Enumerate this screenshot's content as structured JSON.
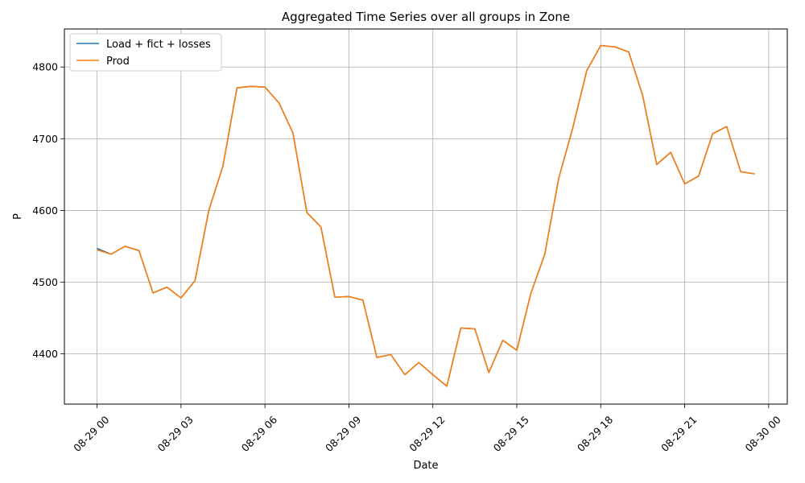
{
  "chart_data": {
    "type": "line",
    "title": "Aggregated Time Series over all groups in Zone",
    "xlabel": "Date",
    "ylabel": "P",
    "x_tick_labels": [
      "08-29 00",
      "08-29 03",
      "08-29 06",
      "08-29 09",
      "08-29 12",
      "08-29 15",
      "08-29 18",
      "08-29 21",
      "08-30 00"
    ],
    "x_tick_dates": [
      "2023-08-29T00:00",
      "2023-08-29T03:00",
      "2023-08-29T06:00",
      "2023-08-29T09:00",
      "2023-08-29T12:00",
      "2023-08-29T15:00",
      "2023-08-29T18:00",
      "2023-08-29T21:00",
      "2023-08-30T00:00"
    ],
    "y_ticks": [
      4400,
      4500,
      4600,
      4700,
      4800
    ],
    "xlim": [
      "2023-08-28T22:50",
      "2023-08-30T00:40"
    ],
    "ylim": [
      4330,
      4853
    ],
    "grid": true,
    "legend_position": "top-left",
    "x": [
      "2023-08-29T00:00",
      "2023-08-29T00:30",
      "2023-08-29T01:00",
      "2023-08-29T01:30",
      "2023-08-29T02:00",
      "2023-08-29T02:30",
      "2023-08-29T03:00",
      "2023-08-29T03:30",
      "2023-08-29T04:00",
      "2023-08-29T04:30",
      "2023-08-29T05:00",
      "2023-08-29T05:30",
      "2023-08-29T06:00",
      "2023-08-29T06:30",
      "2023-08-29T07:00",
      "2023-08-29T07:30",
      "2023-08-29T08:00",
      "2023-08-29T08:30",
      "2023-08-29T09:00",
      "2023-08-29T09:30",
      "2023-08-29T10:00",
      "2023-08-29T10:30",
      "2023-08-29T11:00",
      "2023-08-29T11:30",
      "2023-08-29T12:00",
      "2023-08-29T12:30",
      "2023-08-29T13:00",
      "2023-08-29T13:30",
      "2023-08-29T14:00",
      "2023-08-29T14:30",
      "2023-08-29T15:00",
      "2023-08-29T15:30",
      "2023-08-29T16:00",
      "2023-08-29T16:30",
      "2023-08-29T17:00",
      "2023-08-29T17:30",
      "2023-08-29T18:00",
      "2023-08-29T18:30",
      "2023-08-29T19:00",
      "2023-08-29T19:30",
      "2023-08-29T20:00",
      "2023-08-29T20:30",
      "2023-08-29T21:00",
      "2023-08-29T21:30",
      "2023-08-29T22:00",
      "2023-08-29T22:30",
      "2023-08-29T23:00",
      "2023-08-29T23:30"
    ],
    "series": [
      {
        "name": "Load + fict + losses",
        "color": "#1f77b4",
        "values": [
          4547,
          4539,
          4550,
          4544,
          4485,
          4493,
          4478,
          4502,
          4601,
          4662,
          4771,
          4773,
          4772,
          4750,
          4708,
          4597,
          4577,
          4479,
          4480,
          4475,
          4395,
          4399,
          4371,
          4388,
          4371,
          4355,
          4436,
          4435,
          4374,
          4419,
          4405,
          4484,
          4539,
          4645,
          4715,
          4795,
          4830,
          4828,
          4821,
          4760,
          4664,
          4681,
          4637,
          4648,
          4707,
          4717,
          4654,
          4651
        ]
      },
      {
        "name": "Prod",
        "color": "#ff7f0e",
        "values": [
          4545,
          4539,
          4550,
          4544,
          4485,
          4493,
          4478,
          4502,
          4601,
          4662,
          4771,
          4773,
          4772,
          4750,
          4708,
          4597,
          4577,
          4479,
          4480,
          4475,
          4395,
          4399,
          4371,
          4388,
          4371,
          4355,
          4436,
          4435,
          4374,
          4419,
          4405,
          4484,
          4539,
          4645,
          4715,
          4795,
          4830,
          4828,
          4821,
          4760,
          4664,
          4681,
          4637,
          4648,
          4707,
          4717,
          4654,
          4651
        ]
      }
    ]
  }
}
